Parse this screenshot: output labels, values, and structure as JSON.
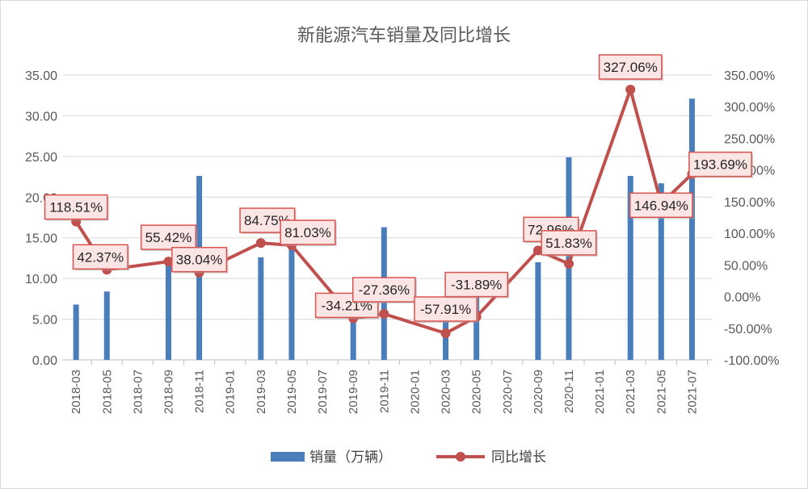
{
  "chart_data": {
    "type": "bar",
    "title": "新能源汽车销量及同比增长",
    "categories": [
      "2018-03",
      "2018-05",
      "2018-07",
      "2018-09",
      "2018-11",
      "2019-01",
      "2019-03",
      "2019-05",
      "2019-07",
      "2019-09",
      "2019-11",
      "2020-01",
      "2020-03",
      "2020-05",
      "2020-07",
      "2020-09",
      "2020-11",
      "2021-01",
      "2021-03",
      "2021-05",
      "2021-07"
    ],
    "y_left": {
      "ylim": [
        0,
        35
      ],
      "ticks": [
        "0.00",
        "5.00",
        "10.00",
        "15.00",
        "20.00",
        "25.00",
        "30.00",
        "35.00"
      ]
    },
    "y_right": {
      "ylim": [
        -100,
        350
      ],
      "ticks": [
        "-100.00%",
        "-50.00%",
        "0.00%",
        "50.00%",
        "100.00%",
        "150.00%",
        "200.00%",
        "250.00%",
        "300.00%",
        "350.00%"
      ]
    },
    "series": [
      {
        "name": "销量（万辆）",
        "type": "bar",
        "axis": "left",
        "color": "#4a7ebb",
        "points": [
          {
            "x": "2018-03",
            "y": 6.8
          },
          {
            "x": "2018-05",
            "y": 8.4
          },
          {
            "x": "2018-09",
            "y": 12.0
          },
          {
            "x": "2018-11",
            "y": 22.6
          },
          {
            "x": "2019-03",
            "y": 12.6
          },
          {
            "x": "2019-05",
            "y": 14.0
          },
          {
            "x": "2019-09",
            "y": 8.0
          },
          {
            "x": "2019-11",
            "y": 16.3
          },
          {
            "x": "2020-03",
            "y": 5.0
          },
          {
            "x": "2020-05",
            "y": 10.4
          },
          {
            "x": "2020-09",
            "y": 12.0
          },
          {
            "x": "2020-11",
            "y": 24.9
          },
          {
            "x": "2021-03",
            "y": 22.6
          },
          {
            "x": "2021-05",
            "y": 21.7
          },
          {
            "x": "2021-07",
            "y": 32.1
          }
        ]
      },
      {
        "name": "同比增长",
        "type": "line",
        "axis": "right",
        "color": "#c0504d",
        "points": [
          {
            "x": "2018-03",
            "y": 118.51,
            "label": "118.51%"
          },
          {
            "x": "2018-05",
            "y": 42.37,
            "label": "42.37%"
          },
          {
            "x": "2018-09",
            "y": 55.42,
            "label": "55.42%"
          },
          {
            "x": "2018-11",
            "y": 38.04,
            "label": "38.04%"
          },
          {
            "x": "2019-03",
            "y": 84.75,
            "label": "84.75%"
          },
          {
            "x": "2019-05",
            "y": 81.03,
            "label": "81.03%"
          },
          {
            "x": "2019-09",
            "y": -34.21,
            "label": "-34.21%"
          },
          {
            "x": "2019-11",
            "y": -27.36,
            "label": "-27.36%"
          },
          {
            "x": "2020-03",
            "y": -57.91,
            "label": "-57.91%"
          },
          {
            "x": "2020-05",
            "y": -31.89,
            "label": "-31.89%"
          },
          {
            "x": "2020-09",
            "y": 72.96,
            "label": "72.96%"
          },
          {
            "x": "2020-11",
            "y": 51.83,
            "label": "51.83%"
          },
          {
            "x": "2021-03",
            "y": 327.06,
            "label": "327.06%"
          },
          {
            "x": "2021-05",
            "y": 146.94,
            "label": "146.94%"
          },
          {
            "x": "2021-07",
            "y": 193.69,
            "label": "193.69%"
          }
        ]
      }
    ],
    "grid": true,
    "legend": "bottom"
  }
}
